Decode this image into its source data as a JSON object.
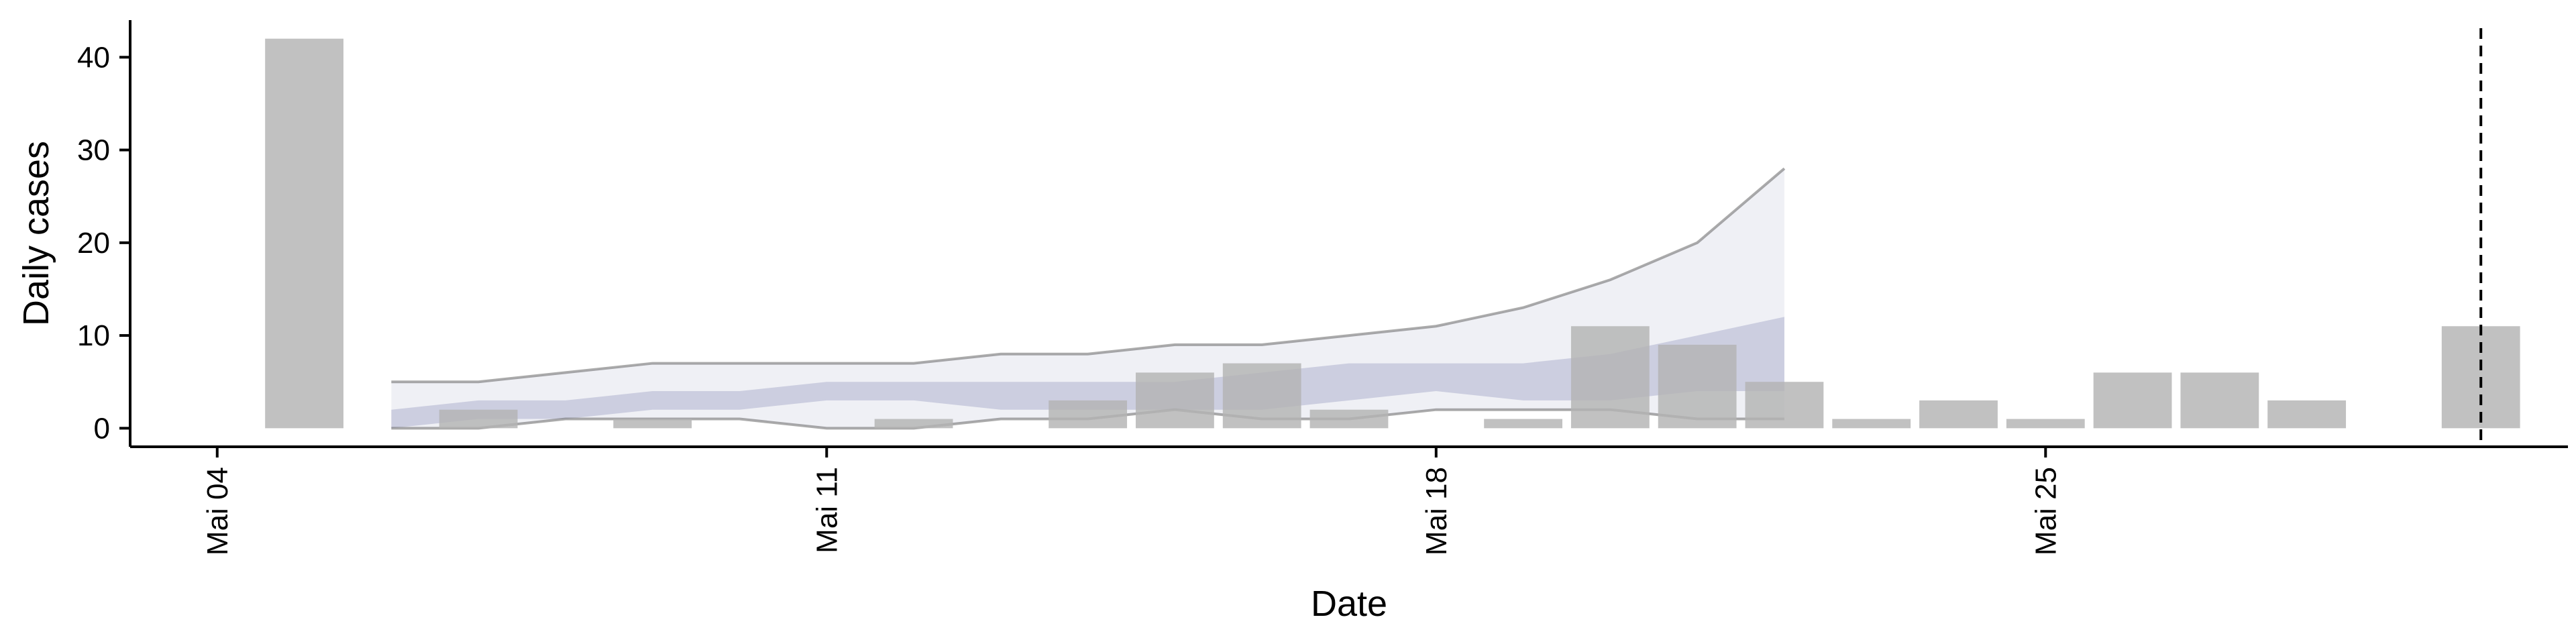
{
  "chart_data": {
    "type": "bar",
    "xlabel": "Date",
    "ylabel": "Daily cases",
    "ylim": [
      -2,
      44
    ],
    "y_ticks": [
      0,
      10,
      20,
      30,
      40
    ],
    "x_range": [
      "2020-05-03",
      "2020-05-31"
    ],
    "x_ticks": [
      {
        "date": "2020-05-04",
        "label": "Mai 04"
      },
      {
        "date": "2020-05-11",
        "label": "Mai 11"
      },
      {
        "date": "2020-05-18",
        "label": "Mai 18"
      },
      {
        "date": "2020-05-25",
        "label": "Mai 25"
      }
    ],
    "observed": {
      "dates": [
        "2020-05-05",
        "2020-05-06",
        "2020-05-07",
        "2020-05-08",
        "2020-05-09",
        "2020-05-10",
        "2020-05-11",
        "2020-05-12",
        "2020-05-13",
        "2020-05-14",
        "2020-05-15",
        "2020-05-16",
        "2020-05-17",
        "2020-05-18",
        "2020-05-19",
        "2020-05-20",
        "2020-05-21",
        "2020-05-22",
        "2020-05-23",
        "2020-05-24",
        "2020-05-25",
        "2020-05-26",
        "2020-05-27",
        "2020-05-28",
        "2020-05-29",
        "2020-05-30"
      ],
      "values": [
        42,
        0,
        2,
        0,
        1,
        0,
        0,
        1,
        0,
        3,
        6,
        7,
        2,
        0,
        1,
        11,
        9,
        5,
        1,
        3,
        1,
        6,
        6,
        3,
        0,
        11
      ],
      "color": "#b3b3b3"
    },
    "forecast": {
      "dates": [
        "2020-05-06",
        "2020-05-07",
        "2020-05-08",
        "2020-05-09",
        "2020-05-10",
        "2020-05-11",
        "2020-05-12",
        "2020-05-13",
        "2020-05-14",
        "2020-05-15",
        "2020-05-16",
        "2020-05-17",
        "2020-05-18",
        "2020-05-19",
        "2020-05-20",
        "2020-05-21",
        "2020-05-22"
      ],
      "outer_upper": [
        5,
        5,
        6,
        7,
        7,
        7,
        7,
        8,
        8,
        9,
        9,
        10,
        11,
        13,
        16,
        20,
        28
      ],
      "outer_lower": [
        0,
        0,
        1,
        1,
        1,
        0,
        0,
        1,
        1,
        2,
        1,
        1,
        2,
        2,
        2,
        1,
        1
      ],
      "inner_upper": [
        2,
        3,
        3,
        4,
        4,
        5,
        5,
        5,
        5,
        5,
        6,
        7,
        7,
        7,
        8,
        10,
        12
      ],
      "inner_lower": [
        0,
        1,
        1,
        2,
        2,
        3,
        3,
        2,
        2,
        2,
        2,
        3,
        4,
        3,
        3,
        4,
        4
      ],
      "outer_fill": "#eff0f5",
      "inner_fill": "#c0c3d8",
      "band_line": "#666666"
    },
    "reference_line": {
      "date": "2020-05-30",
      "style": "dashed",
      "color": "#000000"
    },
    "grid": false
  }
}
